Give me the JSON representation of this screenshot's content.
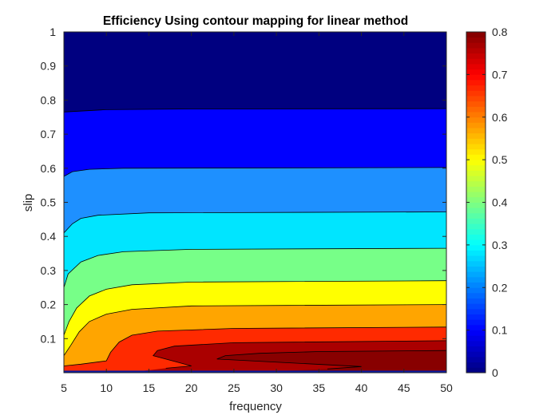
{
  "chart_data": {
    "type": "contour",
    "title": "Efficiency Using contour mapping for linear method",
    "xlabel": "frequency",
    "ylabel": "slip",
    "xlim": [
      5,
      50
    ],
    "ylim": [
      0,
      1
    ],
    "x_ticks": [
      5,
      10,
      15,
      20,
      25,
      30,
      35,
      40,
      45,
      50
    ],
    "y_ticks": [
      0.1,
      0.2,
      0.3,
      0.4,
      0.5,
      0.6,
      0.7,
      0.8,
      0.9,
      1
    ],
    "contour_levels": [
      0,
      0.1,
      0.2,
      0.3,
      0.4,
      0.5,
      0.6,
      0.7,
      0.8
    ],
    "colormap": "jet",
    "colorbar": {
      "location": "right",
      "range": [
        0,
        0.8
      ],
      "ticks": [
        0,
        0.1,
        0.2,
        0.3,
        0.4,
        0.5,
        0.6,
        0.7,
        0.8
      ]
    },
    "level_curves": [
      {
        "level": 0.1,
        "color": "#0000ff",
        "points": [
          [
            5,
            0.765
          ],
          [
            10,
            0.772
          ],
          [
            20,
            0.774
          ],
          [
            50,
            0.775
          ]
        ]
      },
      {
        "level": 0.2,
        "color": "#1e90ff",
        "points": [
          [
            5,
            0.576
          ],
          [
            6,
            0.59
          ],
          [
            8,
            0.597
          ],
          [
            12,
            0.6
          ],
          [
            50,
            0.602
          ]
        ]
      },
      {
        "level": 0.3,
        "color": "#00e5ff",
        "points": [
          [
            5,
            0.41
          ],
          [
            6,
            0.437
          ],
          [
            7,
            0.453
          ],
          [
            9,
            0.462
          ],
          [
            15,
            0.469
          ],
          [
            50,
            0.472
          ]
        ]
      },
      {
        "level": 0.4,
        "color": "#77ff88",
        "points": [
          [
            5,
            0.25
          ],
          [
            5.5,
            0.29
          ],
          [
            7,
            0.325
          ],
          [
            9,
            0.344
          ],
          [
            12,
            0.355
          ],
          [
            20,
            0.362
          ],
          [
            50,
            0.365
          ]
        ]
      },
      {
        "level": 0.5,
        "color": "#ffff00",
        "points": [
          [
            5,
            0.11
          ],
          [
            5.6,
            0.15
          ],
          [
            6.5,
            0.19
          ],
          [
            8,
            0.225
          ],
          [
            10,
            0.245
          ],
          [
            13,
            0.258
          ],
          [
            20,
            0.266
          ],
          [
            50,
            0.27
          ]
        ]
      },
      {
        "level": 0.6,
        "color": "#ffa500",
        "points": [
          [
            5,
            0.05
          ],
          [
            5.8,
            0.08
          ],
          [
            6.8,
            0.12
          ],
          [
            8,
            0.15
          ],
          [
            10,
            0.172
          ],
          [
            13,
            0.186
          ],
          [
            20,
            0.196
          ],
          [
            50,
            0.2
          ]
        ]
      },
      {
        "level": 0.7,
        "color": "#ff2a00",
        "points": [
          [
            5,
            0.02
          ],
          [
            7,
            0.025
          ],
          [
            10,
            0.035
          ],
          [
            10.5,
            0.06
          ],
          [
            11.5,
            0.09
          ],
          [
            13,
            0.11
          ],
          [
            16,
            0.122
          ],
          [
            25,
            0.13
          ],
          [
            50,
            0.134
          ]
        ]
      },
      {
        "level": 0.8,
        "color": "#aa0000",
        "points": [
          [
            17,
            0.013
          ],
          [
            20,
            0.02
          ],
          [
            15.5,
            0.05
          ],
          [
            16,
            0.065
          ],
          [
            18,
            0.078
          ],
          [
            25,
            0.088
          ],
          [
            50,
            0.094
          ]
        ]
      },
      {
        "level": 0.85,
        "color": "#880000",
        "points": [
          [
            36,
            0.011
          ],
          [
            40,
            0.018
          ],
          [
            23,
            0.04
          ],
          [
            24,
            0.05
          ],
          [
            28,
            0.057
          ],
          [
            35,
            0.062
          ],
          [
            50,
            0.065
          ]
        ]
      }
    ]
  }
}
